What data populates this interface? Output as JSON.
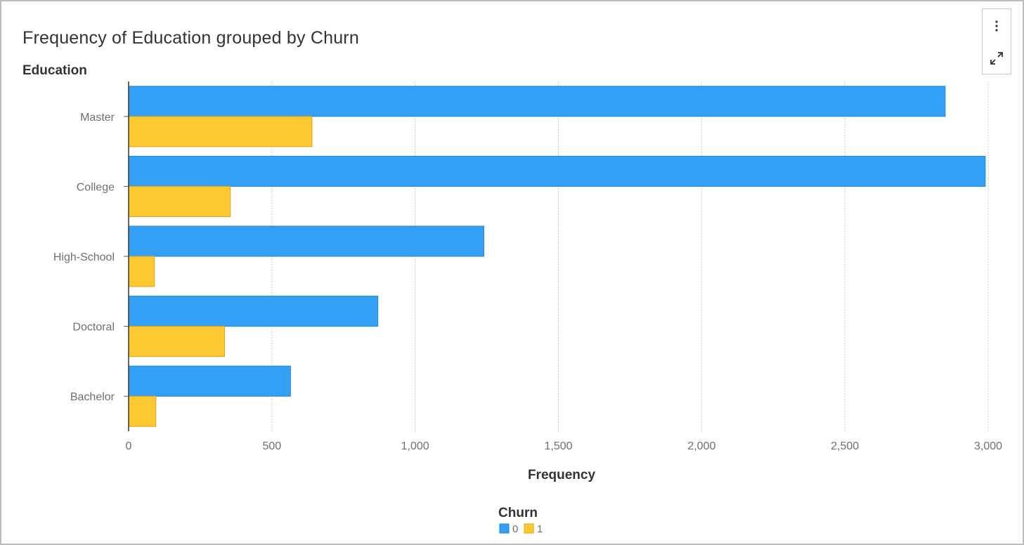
{
  "window": {
    "title": "Frequency of Education grouped by Churn"
  },
  "toolbar": {
    "more_icon": "more-vertical-icon",
    "maximize_icon": "maximize-icon"
  },
  "chart_data": {
    "type": "bar",
    "orientation": "horizontal",
    "title": "Frequency of Education grouped by Churn",
    "ylabel": "Education",
    "xlabel": "Frequency",
    "categories": [
      "Master",
      "College",
      "High-School",
      "Doctoral",
      "Bachelor"
    ],
    "series": [
      {
        "name": "0",
        "color": "#33a0f5",
        "values": [
          2850,
          2990,
          1240,
          870,
          565
        ]
      },
      {
        "name": "1",
        "color": "#fdc830",
        "values": [
          640,
          355,
          90,
          335,
          95
        ]
      }
    ],
    "xlim": [
      0,
      3000
    ],
    "xticks": [
      0,
      500,
      1000,
      1500,
      2000,
      2500,
      3000
    ],
    "xtick_labels": [
      "0",
      "500",
      "1,000",
      "1,500",
      "2,000",
      "2,500",
      "3,000"
    ],
    "grid": "vertical-dotted",
    "legend": {
      "title": "Churn",
      "placement": "bottom-center"
    }
  }
}
